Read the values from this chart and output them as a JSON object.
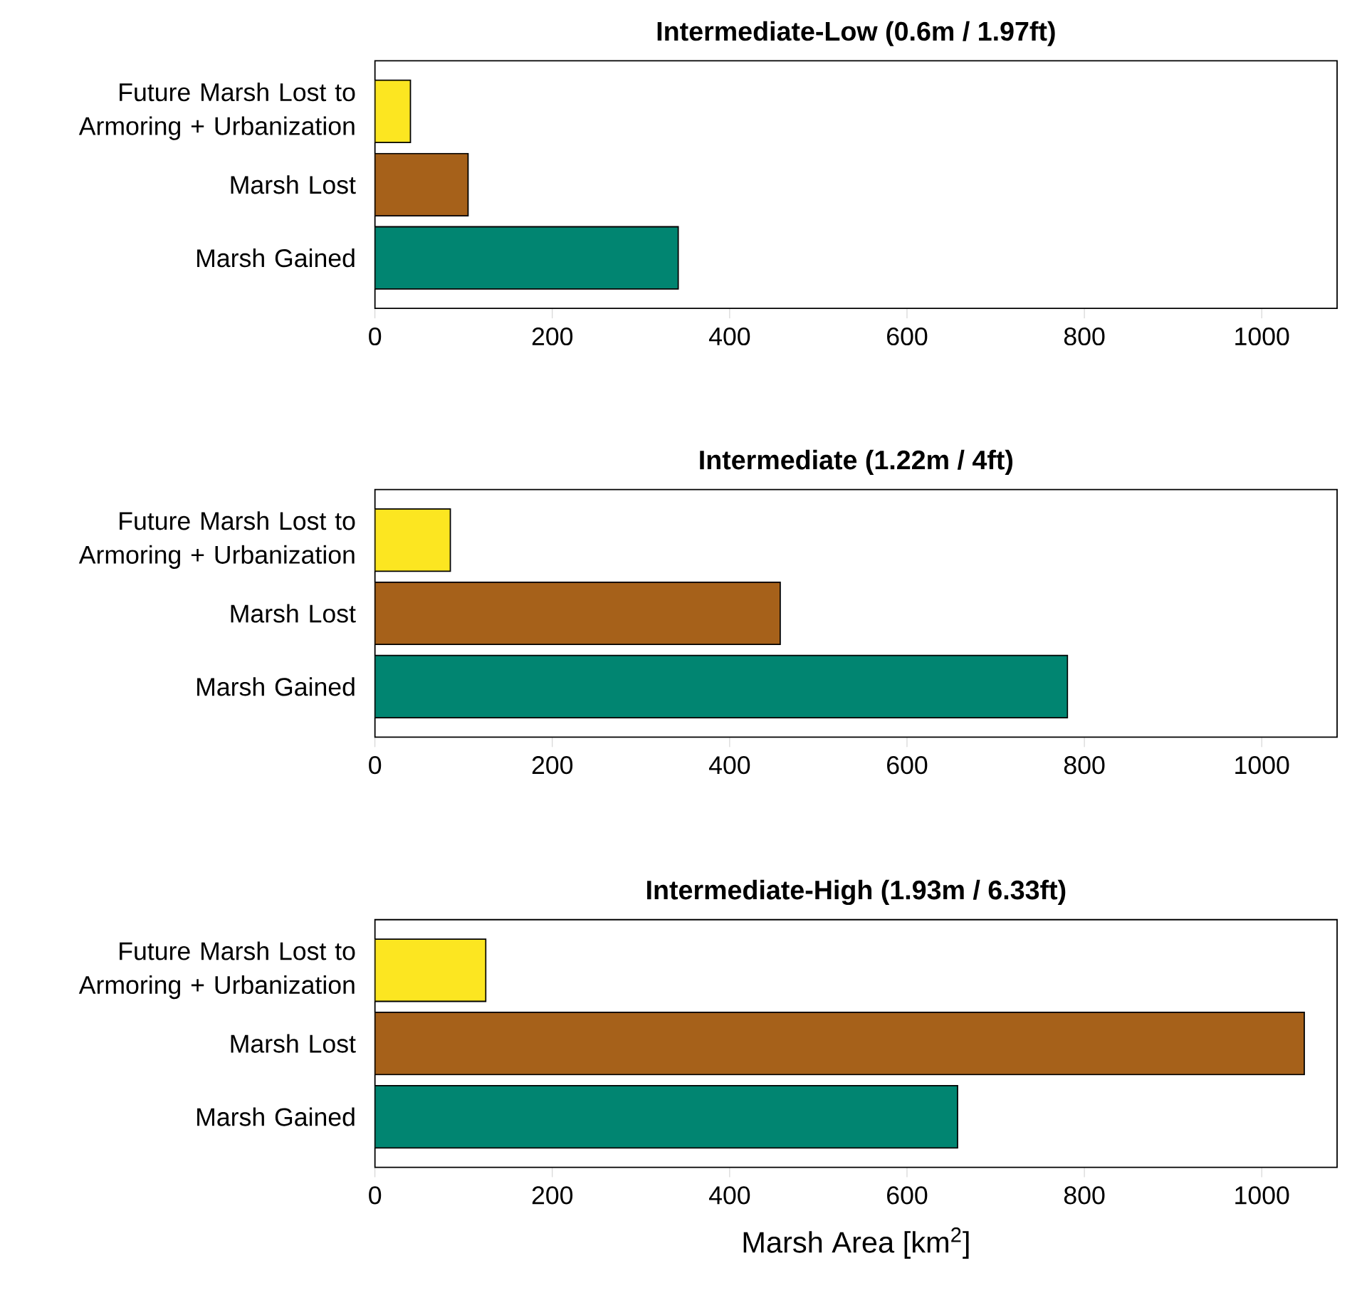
{
  "chart_data": [
    {
      "type": "bar",
      "orientation": "horizontal",
      "title": "Intermediate-Low (0.6m / 1.97ft)",
      "categories": [
        "Future Marsh Lost to Armoring + Urbanization",
        "Marsh Lost",
        "Marsh Gained"
      ],
      "values": [
        40,
        105,
        342
      ],
      "colors": [
        "#fce621",
        "#a6611a",
        "#018571"
      ],
      "xlim": [
        0,
        1085
      ],
      "xticks": [
        0,
        200,
        400,
        600,
        800,
        1000
      ]
    },
    {
      "type": "bar",
      "orientation": "horizontal",
      "title": "Intermediate (1.22m / 4ft)",
      "categories": [
        "Future Marsh Lost to Armoring + Urbanization",
        "Marsh Lost",
        "Marsh Gained"
      ],
      "values": [
        85,
        457,
        781
      ],
      "colors": [
        "#fce621",
        "#a6611a",
        "#018571"
      ],
      "xlim": [
        0,
        1085
      ],
      "xticks": [
        0,
        200,
        400,
        600,
        800,
        1000
      ]
    },
    {
      "type": "bar",
      "orientation": "horizontal",
      "title": "Intermediate-High (1.93m / 6.33ft)",
      "categories": [
        "Future Marsh Lost to Armoring + Urbanization",
        "Marsh Lost",
        "Marsh Gained"
      ],
      "values": [
        125,
        1048,
        657
      ],
      "colors": [
        "#fce621",
        "#a6611a",
        "#018571"
      ],
      "xlim": [
        0,
        1085
      ],
      "xticks": [
        0,
        200,
        400,
        600,
        800,
        1000
      ],
      "xlabel": "Marsh Area [km$^{2}$]"
    }
  ]
}
